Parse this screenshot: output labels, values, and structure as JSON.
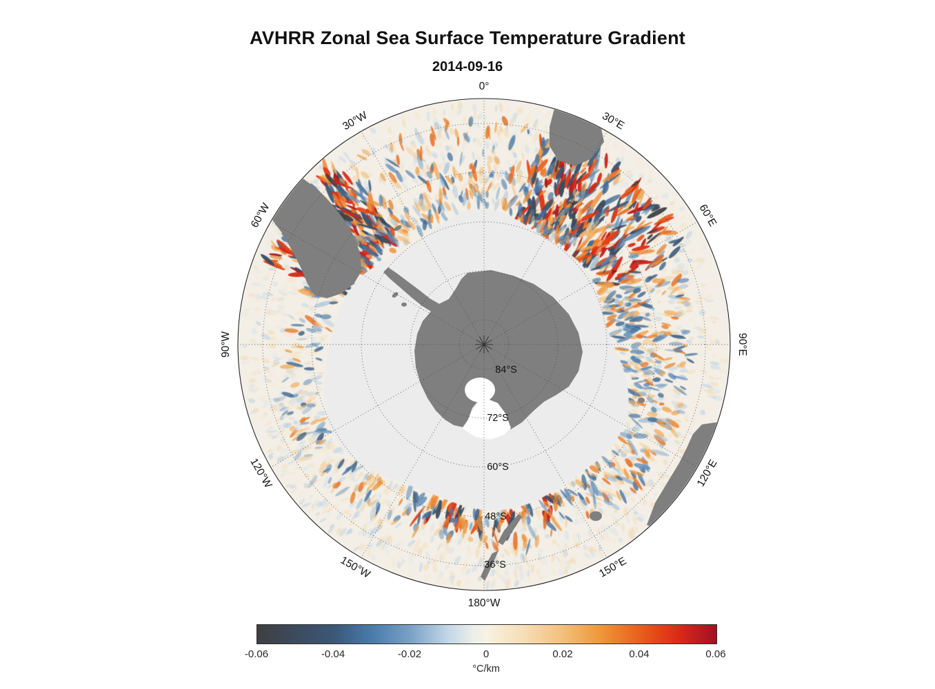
{
  "chart_data": {
    "type": "heatmap",
    "title": "AVHRR Zonal Sea Surface Temperature Gradient",
    "date": "2014-09-16",
    "projection": "south-polar-azimuthal",
    "outer_latitude_deg": -30,
    "pole_latitude_deg": -90,
    "sea_color": "#f3efe7",
    "ice_color": "#ececec",
    "land_color": "#7f7f7f",
    "grid_color": "#444444",
    "lon_labels": [
      {
        "deg": 0,
        "text": "0°"
      },
      {
        "deg": 30,
        "text": "30°E"
      },
      {
        "deg": 60,
        "text": "60°E"
      },
      {
        "deg": 90,
        "text": "90°E"
      },
      {
        "deg": 120,
        "text": "120°E"
      },
      {
        "deg": 150,
        "text": "150°E"
      },
      {
        "deg": 180,
        "text": "180°W"
      },
      {
        "deg": -150,
        "text": "150°W"
      },
      {
        "deg": -120,
        "text": "120°W"
      },
      {
        "deg": -90,
        "text": "90°W"
      },
      {
        "deg": -60,
        "text": "60°W"
      },
      {
        "deg": -30,
        "text": "30°W"
      }
    ],
    "lat_labels": [
      {
        "lat": -84,
        "text": "84°S"
      },
      {
        "lat": -72,
        "text": "72°S"
      },
      {
        "lat": -60,
        "text": "60°S"
      },
      {
        "lat": -48,
        "text": "48°S"
      },
      {
        "lat": -36,
        "text": "36°S"
      }
    ],
    "lat_circles_deg": [
      -84,
      -72,
      -60,
      -48,
      -36
    ],
    "lon_spokes_step_deg": 30,
    "colorbar": {
      "min": -0.06,
      "max": 0.06,
      "ticks": [
        -0.06,
        -0.04,
        -0.02,
        0,
        0.02,
        0.04,
        0.06
      ],
      "tick_labels": [
        "-0.06",
        "-0.04",
        "-0.02",
        "0",
        "0.02",
        "0.04",
        "0.06"
      ],
      "unit": "°C/km",
      "stops": [
        {
          "t": 0.0,
          "c": "#3f3f41"
        },
        {
          "t": 0.08,
          "c": "#3c4a5c"
        },
        {
          "t": 0.167,
          "c": "#3b5878"
        },
        {
          "t": 0.25,
          "c": "#4a7bab"
        },
        {
          "t": 0.333,
          "c": "#7aa1c4"
        },
        {
          "t": 0.417,
          "c": "#c3d8e8"
        },
        {
          "t": 0.47,
          "c": "#eceee9"
        },
        {
          "t": 0.5,
          "c": "#f7f2e4"
        },
        {
          "t": 0.53,
          "c": "#f7ead0"
        },
        {
          "t": 0.583,
          "c": "#f6ddb5"
        },
        {
          "t": 0.667,
          "c": "#f3bf7a"
        },
        {
          "t": 0.75,
          "c": "#ee9638"
        },
        {
          "t": 0.833,
          "c": "#e7601c"
        },
        {
          "t": 0.917,
          "c": "#dc2a16"
        },
        {
          "t": 1.0,
          "c": "#9e1224"
        }
      ]
    },
    "activity_regions": [
      {
        "name": "agulhas-return",
        "lon_start": 15,
        "lon_end": 65,
        "r_frac": [
          0.5,
          0.9
        ],
        "intensity": "strong",
        "count": 300
      },
      {
        "name": "drake-falkland",
        "lon_start": -70,
        "lon_end": -38,
        "r_frac": [
          0.56,
          0.95
        ],
        "intensity": "strong",
        "count": 240
      },
      {
        "name": "indian-acc",
        "lon_start": 65,
        "lon_end": 100,
        "r_frac": [
          0.5,
          0.85
        ],
        "intensity": "medium",
        "count": 170
      },
      {
        "name": "ross-pacific",
        "lon_start": 150,
        "lon_end": 205,
        "r_frac": [
          0.42,
          0.75
        ],
        "intensity": "strong",
        "count": 190
      },
      {
        "name": "australian-acc",
        "lon_start": 100,
        "lon_end": 148,
        "r_frac": [
          0.55,
          0.85
        ],
        "intensity": "medium",
        "count": 150
      },
      {
        "name": "weddell-atlantic",
        "lon_start": -40,
        "lon_end": 12,
        "r_frac": [
          0.55,
          0.92
        ],
        "intensity": "medium",
        "count": 140
      },
      {
        "name": "amundsen",
        "lon_start": -150,
        "lon_end": -95,
        "r_frac": [
          0.6,
          0.9
        ],
        "intensity": "faint",
        "count": 90
      },
      {
        "name": "ice-edge-ring",
        "lon_start": -180,
        "lon_end": 180,
        "r_frac": [
          0.48,
          0.64
        ],
        "intensity": "medium",
        "count": 420
      }
    ]
  }
}
